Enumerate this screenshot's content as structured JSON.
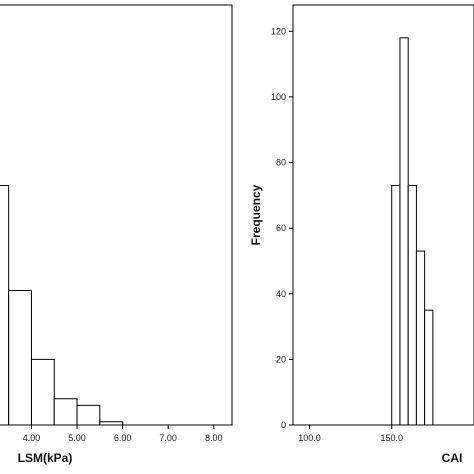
{
  "chart_data": [
    {
      "type": "bar",
      "xlabel": "LSM(kPa)",
      "ylabel": "",
      "xlim": [
        3.2,
        8.4
      ],
      "ylim": [
        0,
        128
      ],
      "x_ticks": [
        4.0,
        5.0,
        6.0,
        7.0,
        8.0
      ],
      "x_tick_labels": [
        "4.00",
        "5.00",
        "6.00",
        "7.00",
        "8.00"
      ],
      "y_ticks": [],
      "bin_width": 0.5,
      "bins": [
        {
          "start": 3.0,
          "value": 73
        },
        {
          "start": 3.5,
          "value": 41
        },
        {
          "start": 4.0,
          "value": 20
        },
        {
          "start": 4.5,
          "value": 8
        },
        {
          "start": 5.0,
          "value": 6
        },
        {
          "start": 5.5,
          "value": 1
        }
      ],
      "grid": false
    },
    {
      "type": "bar",
      "xlabel": "CAI",
      "ylabel": "Frequency",
      "xlim": [
        90,
        200
      ],
      "ylim": [
        0,
        128
      ],
      "x_ticks": [
        100,
        150
      ],
      "x_tick_labels": [
        "100.0",
        "150.0"
      ],
      "y_ticks": [
        0,
        20,
        40,
        60,
        80,
        100,
        120
      ],
      "y_tick_labels": [
        "0",
        "20",
        "40",
        "60",
        "80",
        "100",
        "120"
      ],
      "bin_width": 5,
      "bins": [
        {
          "start": 150,
          "value": 73
        },
        {
          "start": 155,
          "value": 118
        },
        {
          "start": 160,
          "value": 73
        },
        {
          "start": 165,
          "value": 53
        },
        {
          "start": 170,
          "value": 35
        }
      ],
      "grid": false
    }
  ]
}
